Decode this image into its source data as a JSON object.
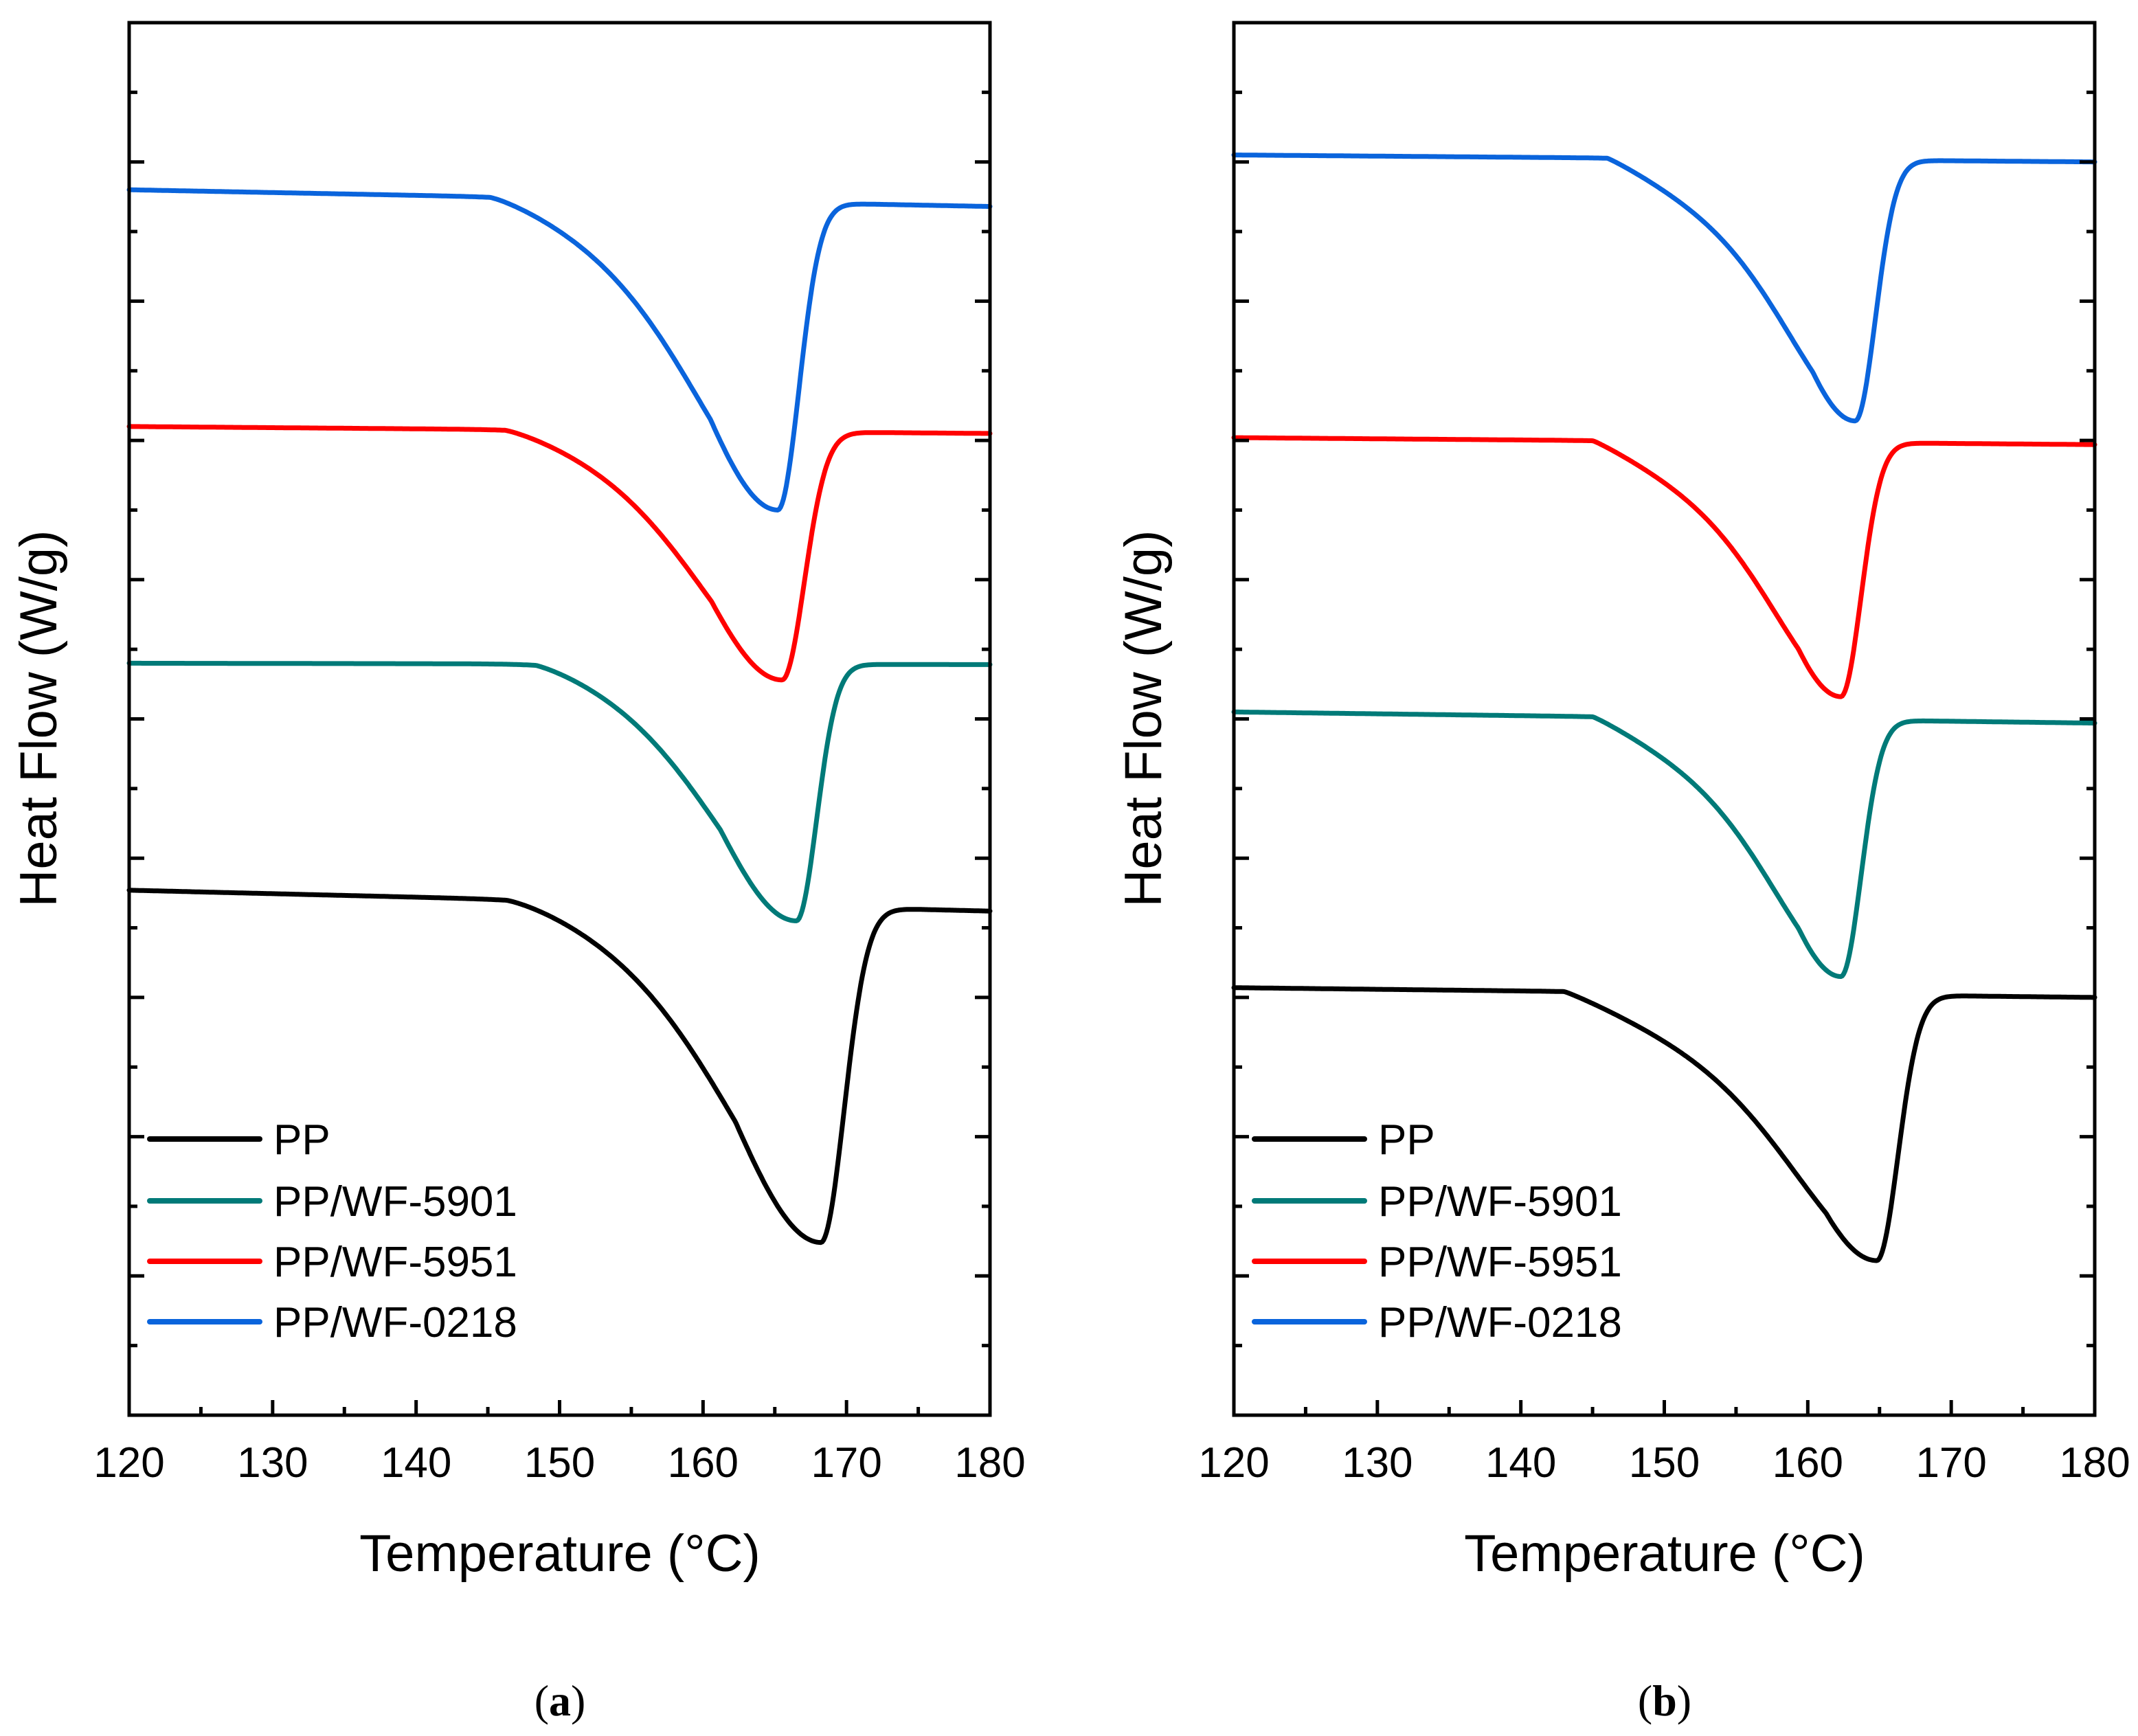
{
  "chart_data": [
    {
      "type": "line",
      "panel_label": "a",
      "xlabel": "Temperature (°C)",
      "ylabel": "Heat Flow (W/g)",
      "xlim": [
        120,
        180
      ],
      "ylim": [
        0,
        10
      ],
      "x_ticks": [
        "120",
        "130",
        "140",
        "150",
        "160",
        "170",
        "180"
      ],
      "x_minor_ticks": true,
      "y_tick_labels_shown": false,
      "grid": false,
      "legend_position": "bottom-left",
      "series": [
        {
          "name": "PP",
          "color": "#000000",
          "baseline": 3.77,
          "end": 3.62,
          "peak_x": 168.2,
          "peak_y": 1.24,
          "onset_x": 146,
          "front_tail": 9,
          "back_width": 2.3,
          "curve": 1.4
        },
        {
          "name": "PP/WF-5901",
          "color": "#007A78",
          "baseline": 5.4,
          "end": 5.39,
          "peak_x": 166.5,
          "peak_y": 3.55,
          "onset_x": 148,
          "front_tail": 8,
          "back_width": 2.0,
          "curve": 1.3
        },
        {
          "name": "PP/WF-5951",
          "color": "#FF0000",
          "baseline": 7.1,
          "end": 7.05,
          "peak_x": 165.5,
          "peak_y": 5.28,
          "onset_x": 146,
          "front_tail": 8,
          "back_width": 2.2,
          "curve": 1.3
        },
        {
          "name": "PP/WF-0218",
          "color": "#0A64DC",
          "baseline": 8.8,
          "end": 8.68,
          "peak_x": 165.2,
          "peak_y": 6.5,
          "onset_x": 145,
          "front_tail": 8,
          "back_width": 2.1,
          "curve": 1.3
        }
      ]
    },
    {
      "type": "line",
      "panel_label": "b",
      "xlabel": "Temperature (°C)",
      "ylabel": "Heat Flow (W/g)",
      "xlim": [
        120,
        180
      ],
      "ylim": [
        0,
        10
      ],
      "x_ticks": [
        "120",
        "130",
        "140",
        "150",
        "160",
        "170",
        "180"
      ],
      "x_minor_ticks": true,
      "y_tick_labels_shown": false,
      "grid": false,
      "legend_position": "bottom-left",
      "series": [
        {
          "name": "PP",
          "color": "#000000",
          "baseline": 3.07,
          "end": 3.0,
          "peak_x": 164.8,
          "peak_y": 1.11,
          "onset_x": 143,
          "front_tail": 8,
          "back_width": 2.1,
          "curve": 1.1
        },
        {
          "name": "PP/WF-5901",
          "color": "#007A78",
          "baseline": 5.05,
          "end": 4.97,
          "peak_x": 162.3,
          "peak_y": 3.15,
          "onset_x": 145,
          "front_tail": 6.5,
          "back_width": 2.0,
          "curve": 1.1
        },
        {
          "name": "PP/WF-5951",
          "color": "#FF0000",
          "baseline": 7.02,
          "end": 6.97,
          "peak_x": 162.3,
          "peak_y": 5.16,
          "onset_x": 145,
          "front_tail": 6.5,
          "back_width": 2.0,
          "curve": 1.1
        },
        {
          "name": "PP/WF-0218",
          "color": "#0A64DC",
          "baseline": 9.05,
          "end": 9.0,
          "peak_x": 163.3,
          "peak_y": 7.14,
          "onset_x": 146,
          "front_tail": 6.5,
          "back_width": 2.0,
          "curve": 1.1
        }
      ]
    }
  ],
  "captions": {
    "a": "a",
    "b": "b"
  }
}
